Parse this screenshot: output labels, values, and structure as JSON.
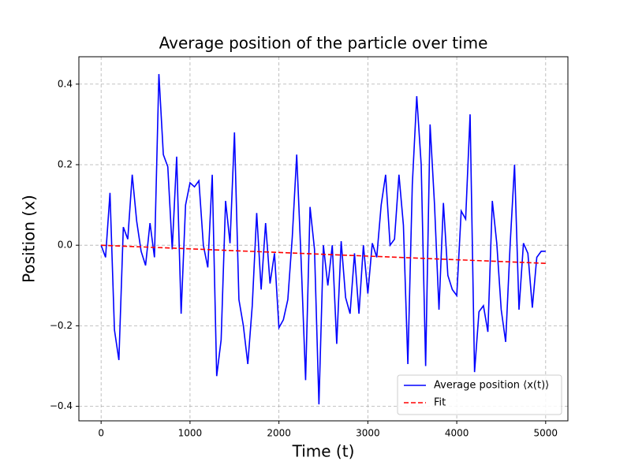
{
  "chart_data": {
    "type": "line",
    "title": "Average position of the particle over time",
    "xlabel": "Time (t)",
    "ylabel": "Position (x)",
    "xlim": [
      -250,
      5250
    ],
    "ylim": [
      -0.436,
      0.468
    ],
    "xticks": [
      0,
      1000,
      2000,
      3000,
      4000,
      5000
    ],
    "yticks": [
      {
        "value": -0.4,
        "label": "−0.4"
      },
      {
        "value": -0.2,
        "label": "−0.2"
      },
      {
        "value": 0,
        "label": "0.0"
      },
      0.2,
      0.4
    ],
    "grid": true,
    "legend": "lower right",
    "series": [
      {
        "name": "Average position ⟨x(t)⟩",
        "color": "#0000ff",
        "dash": "solid",
        "x": [
          0,
          50,
          100,
          150,
          200,
          250,
          300,
          350,
          400,
          450,
          500,
          550,
          600,
          650,
          700,
          750,
          800,
          850,
          900,
          950,
          1000,
          1050,
          1100,
          1150,
          1200,
          1250,
          1300,
          1350,
          1400,
          1450,
          1500,
          1550,
          1600,
          1650,
          1700,
          1750,
          1800,
          1850,
          1900,
          1950,
          2000,
          2050,
          2100,
          2150,
          2200,
          2250,
          2300,
          2350,
          2400,
          2450,
          2500,
          2550,
          2600,
          2650,
          2700,
          2750,
          2800,
          2850,
          2900,
          2950,
          3000,
          3050,
          3100,
          3150,
          3200,
          3250,
          3300,
          3350,
          3400,
          3450,
          3500,
          3550,
          3600,
          3650,
          3700,
          3750,
          3800,
          3850,
          3900,
          3950,
          4000,
          4050,
          4100,
          4150,
          4200,
          4250,
          4300,
          4350,
          4400,
          4450,
          4500,
          4550,
          4600,
          4650,
          4700,
          4750,
          4800,
          4850,
          4900,
          4950,
          5000
        ],
        "values": [
          0,
          -0.03,
          0.13,
          -0.21,
          -0.285,
          0.045,
          0.015,
          0.175,
          0.06,
          -0.015,
          -0.05,
          0.055,
          -0.03,
          0.425,
          0.225,
          0.195,
          -0.01,
          0.22,
          -0.17,
          0.1,
          0.155,
          0.145,
          0.16,
          0,
          -0.055,
          0.175,
          -0.325,
          -0.235,
          0.11,
          0.005,
          0.28,
          -0.135,
          -0.2,
          -0.295,
          -0.15,
          0.08,
          -0.11,
          0.055,
          -0.095,
          -0.02,
          -0.205,
          -0.185,
          -0.135,
          0.02,
          0.225,
          -0.04,
          -0.335,
          0.095,
          -0.01,
          -0.395,
          0,
          -0.1,
          0,
          -0.245,
          0.01,
          -0.13,
          -0.17,
          -0.02,
          -0.17,
          0,
          -0.12,
          0.005,
          -0.03,
          0.1,
          0.175,
          0,
          0.015,
          0.175,
          0.05,
          -0.295,
          0.15,
          0.37,
          0.2,
          -0.3,
          0.3,
          0.1,
          -0.16,
          0.105,
          -0.075,
          -0.11,
          -0.125,
          0.085,
          0.065,
          0.325,
          -0.315,
          -0.165,
          -0.15,
          -0.215,
          0.11,
          0.005,
          -0.16,
          -0.24,
          0,
          0.2,
          -0.16,
          0.005,
          -0.02,
          -0.155,
          -0.03,
          -0.015,
          -0.015
        ]
      },
      {
        "name": "Fit",
        "color": "#ff0000",
        "dash": "dashed",
        "x": [
          0,
          5000
        ],
        "values": [
          0,
          -0.045
        ]
      }
    ]
  }
}
